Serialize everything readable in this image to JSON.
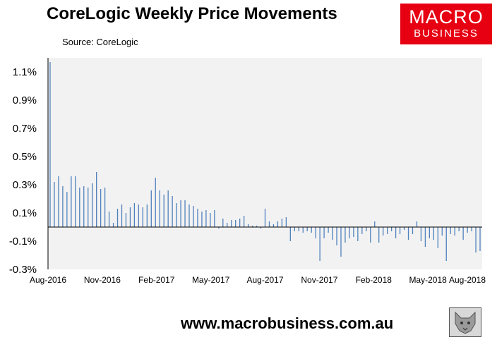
{
  "title": "CoreLogic Weekly Price Movements",
  "source": "Source: CoreLogic",
  "logo": {
    "line1": "MACRO",
    "line2": "BUSINESS",
    "color": "#e60012"
  },
  "footer_url": "www.macrobusiness.com.au",
  "chart_data": {
    "type": "bar",
    "bar_color": "#4f81bd",
    "plot_background": "#f2f2f2",
    "ylim": [
      -0.3,
      1.2
    ],
    "y_ticks": [
      "1.1%",
      "0.9%",
      "0.7%",
      "0.5%",
      "0.3%",
      "0.1%",
      "-0.1%",
      "-0.3%"
    ],
    "y_tick_values": [
      1.1,
      0.9,
      0.7,
      0.5,
      0.3,
      0.1,
      -0.1,
      -0.3
    ],
    "x_ticks": [
      "Aug-2016",
      "Nov-2016",
      "Feb-2017",
      "May-2017",
      "Aug-2017",
      "Nov-2017",
      "Feb-2018",
      "May-2018",
      "Aug-2018"
    ],
    "grid": false,
    "legend": "none",
    "series": [
      {
        "values": [
          1.17,
          0.32,
          0.36,
          0.29,
          0.25,
          0.36,
          0.36,
          0.28,
          0.29,
          0.28,
          0.31,
          0.39,
          0.27,
          0.28,
          0.11,
          0.03,
          0.13,
          0.16,
          0.1,
          0.14,
          0.17,
          0.16,
          0.14,
          0.16,
          0.26,
          0.35,
          0.26,
          0.23,
          0.26,
          0.22,
          0.17,
          0.19,
          0.19,
          0.16,
          0.15,
          0.13,
          0.11,
          0.12,
          0.1,
          0.12,
          -0.01,
          0.06,
          0.03,
          0.05,
          0.05,
          0.06,
          0.08,
          0.02,
          0.01,
          0.01,
          -0.01,
          0.13,
          0.04,
          0.02,
          0.04,
          0.06,
          0.07,
          -0.1,
          -0.03,
          -0.03,
          -0.04,
          -0.03,
          -0.04,
          -0.08,
          -0.24,
          -0.08,
          -0.04,
          -0.09,
          -0.13,
          -0.21,
          -0.11,
          -0.08,
          -0.07,
          -0.1,
          -0.05,
          -0.03,
          -0.11,
          0.04,
          -0.11,
          -0.06,
          -0.05,
          -0.03,
          -0.08,
          -0.05,
          -0.02,
          -0.09,
          -0.05,
          0.04,
          -0.1,
          -0.14,
          -0.08,
          -0.09,
          -0.15,
          -0.06,
          -0.24,
          -0.05,
          -0.06,
          -0.03,
          -0.09,
          -0.04,
          -0.03,
          -0.18,
          -0.17
        ]
      }
    ]
  }
}
